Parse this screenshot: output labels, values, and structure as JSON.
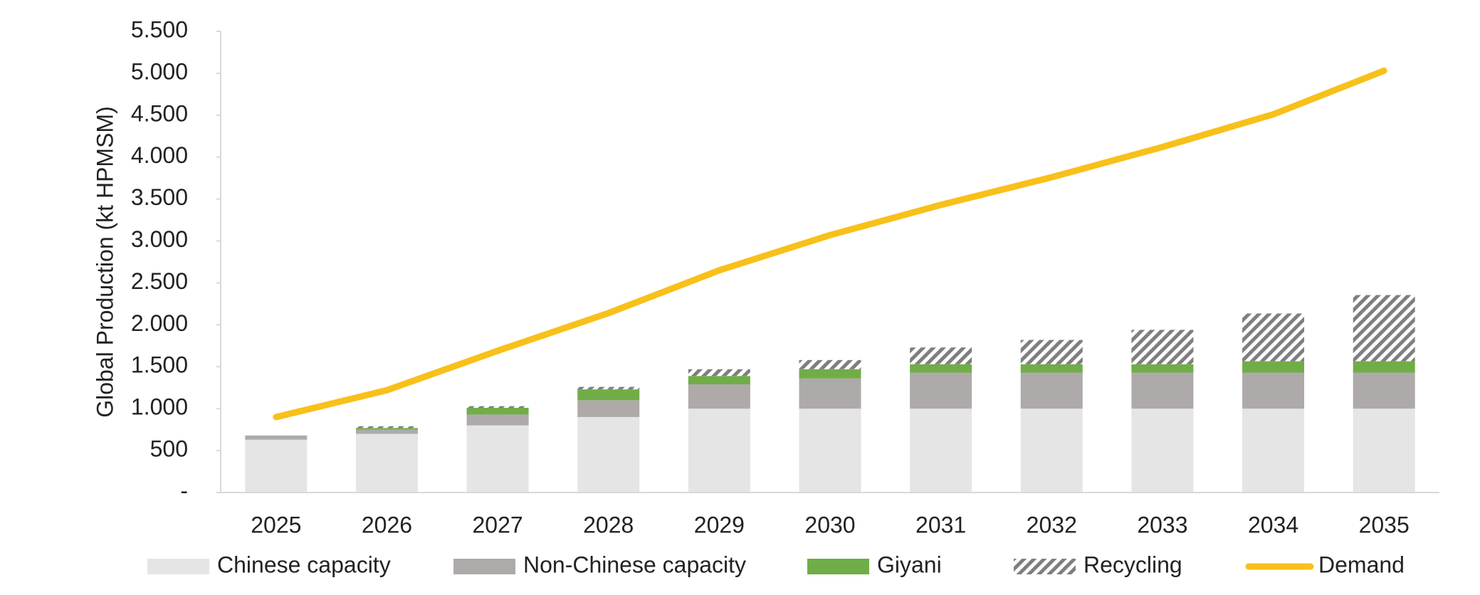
{
  "chart_data": {
    "type": "bar",
    "stacked": true,
    "y_label": "Global Production (kt HPMSM)",
    "categories": [
      "2025",
      "2026",
      "2027",
      "2028",
      "2029",
      "2030",
      "2031",
      "2032",
      "2033",
      "2034",
      "2035"
    ],
    "series": [
      {
        "name": "Chinese capacity",
        "type": "bar",
        "color": "#e6e5e5",
        "values": [
          630,
          700,
          800,
          900,
          1000,
          1000,
          1000,
          1000,
          1000,
          1000,
          1000
        ]
      },
      {
        "name": "Non-Chinese capacity",
        "type": "bar",
        "color": "#aeaaaa",
        "values": [
          50,
          50,
          130,
          200,
          290,
          360,
          430,
          430,
          430,
          430,
          430
        ]
      },
      {
        "name": "Giyani",
        "type": "bar",
        "color": "#70ad47",
        "values": [
          0,
          20,
          80,
          130,
          100,
          110,
          100,
          100,
          100,
          135,
          135
        ]
      },
      {
        "name": "Recycling",
        "type": "bar",
        "color": "#7f7f7f",
        "pattern": "hatch",
        "values": [
          0,
          20,
          20,
          30,
          80,
          110,
          200,
          290,
          410,
          570,
          790
        ]
      },
      {
        "name": "Demand",
        "type": "line",
        "color": "#f8c01a",
        "values": [
          900,
          1220,
          1690,
          2140,
          2650,
          3070,
          3430,
          3760,
          4120,
          4510,
          5030
        ]
      }
    ],
    "ylim": [
      0,
      5500
    ],
    "yticks": [
      {
        "value": 0,
        "label": "-"
      },
      500,
      {
        "value": 1000,
        "label": "1.000"
      },
      {
        "value": 1500,
        "label": "1.500"
      },
      {
        "value": 2000,
        "label": "2.000"
      },
      {
        "value": 2500,
        "label": "2.500"
      },
      {
        "value": 3000,
        "label": "3.000"
      },
      {
        "value": 3500,
        "label": "3.500"
      },
      {
        "value": 4000,
        "label": "4.000"
      },
      {
        "value": 4500,
        "label": "4.500"
      },
      {
        "value": 5000,
        "label": "5.000"
      },
      {
        "value": 5500,
        "label": "5.500"
      }
    ],
    "grid": false,
    "legend": "bottom"
  }
}
